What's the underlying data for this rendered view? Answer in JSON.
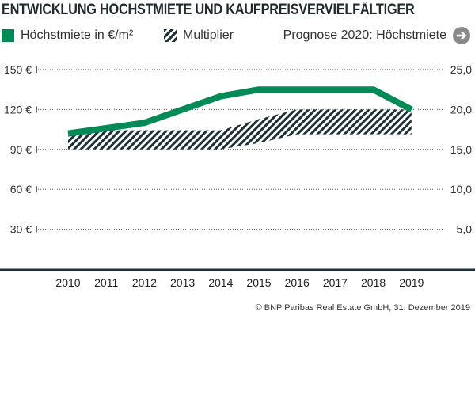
{
  "title": "ENTWICKLUNG HÖCHSTMIETE UND KAUFPREISVERVIELFÄLTIGER",
  "legend": {
    "rent": "Höchstmiete in €/m²",
    "multiplier": "Multiplier",
    "forecast": "Prognose 2020: Höchstmiete",
    "forecast_icon": "arrow-right-circle-icon"
  },
  "copyright": "© BNP Paribas Real Estate GmbH, 31. Dezember 2019",
  "colors": {
    "rent": "#008a55",
    "multiplier": "#1d3038",
    "axis": "#1d3038"
  },
  "chart_data": {
    "type": "line",
    "categories": [
      "2010",
      "2011",
      "2012",
      "2013",
      "2014",
      "2015",
      "2016",
      "2017",
      "2018",
      "2019"
    ],
    "y_left": {
      "ticks": [
        30,
        60,
        90,
        120,
        150
      ],
      "tick_labels": [
        "30 €",
        "60 €",
        "90 €",
        "120 €",
        "150 €"
      ],
      "ylim": [
        0,
        150
      ]
    },
    "y_right": {
      "ticks": [
        5,
        10,
        15,
        20,
        25
      ],
      "tick_labels": [
        "5,0",
        "10,0",
        "15,0",
        "20,0",
        "25,0"
      ],
      "ylim": [
        0,
        25
      ]
    },
    "grid": true,
    "series": [
      {
        "name": "Höchstmiete in €/m²",
        "type": "line",
        "axis": "left",
        "values": [
          102,
          106,
          110,
          120,
          130,
          135,
          135,
          135,
          135,
          120
        ]
      },
      {
        "name": "Multiplier",
        "type": "range-area",
        "axis": "right",
        "lower": [
          15.0,
          15.0,
          15.0,
          15.0,
          15.0,
          15.8,
          16.9,
          16.9,
          16.9,
          16.9
        ],
        "upper": [
          16.7,
          17.4,
          17.4,
          17.4,
          17.4,
          18.8,
          20.0,
          20.0,
          20.0,
          20.0
        ]
      }
    ]
  }
}
